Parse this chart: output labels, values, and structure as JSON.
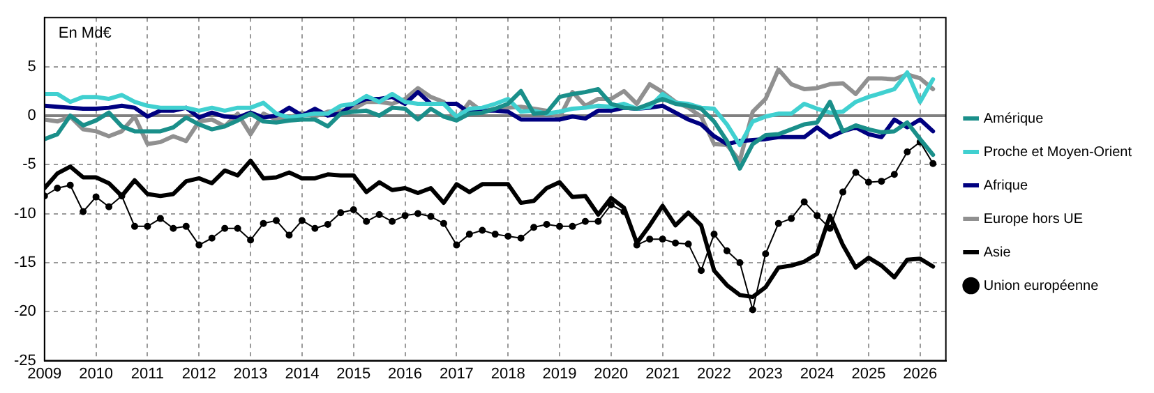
{
  "chart_data": {
    "type": "line",
    "annotations": [
      "En Md€"
    ],
    "x": [
      2009,
      2009.25,
      2009.5,
      2009.75,
      2010,
      2010.25,
      2010.5,
      2010.75,
      2011,
      2011.25,
      2011.5,
      2011.75,
      2012,
      2012.25,
      2012.5,
      2012.75,
      2013,
      2013.25,
      2013.5,
      2013.75,
      2014,
      2014.25,
      2014.5,
      2014.75,
      2015,
      2015.25,
      2015.5,
      2015.75,
      2016,
      2016.25,
      2016.5,
      2016.75,
      2017,
      2017.25,
      2017.5,
      2017.75,
      2018,
      2018.25,
      2018.5,
      2018.75,
      2019,
      2019.25,
      2019.5,
      2019.75,
      2020,
      2020.25,
      2020.5,
      2020.75,
      2021,
      2021.25,
      2021.5,
      2021.75,
      2022,
      2022.25,
      2022.5,
      2022.75,
      2023,
      2023.25,
      2023.5,
      2023.75,
      2024,
      2024.25,
      2024.5,
      2024.75,
      2025,
      2025.25,
      2025.5,
      2025.75,
      2026,
      2026.25
    ],
    "series": [
      {
        "name": "Amérique",
        "color": "#1a8f8a",
        "values": [
          -2.4,
          -1.9,
          0,
          -1,
          -0.5,
          0.3,
          -1.1,
          -1.6,
          -1.6,
          -1.6,
          -1.2,
          -0.2,
          -0.9,
          -1.4,
          -1.1,
          -0.5,
          0.2,
          -0.6,
          -0.7,
          -0.5,
          -0.4,
          -0.4,
          -1.1,
          0.2,
          0.4,
          0.5,
          0,
          0.8,
          0.7,
          -0.4,
          0.7,
          -0.1,
          -0.5,
          0.2,
          0.3,
          0.7,
          1.2,
          2.5,
          0.2,
          0.3,
          1.9,
          2.2,
          2.4,
          2.7,
          1.2,
          0.8,
          0.7,
          1.2,
          1.7,
          1.2,
          1,
          0.7,
          -0.6,
          -2.6,
          -5.4,
          -2.9,
          -2,
          -1.9,
          -1.4,
          -0.9,
          -0.7,
          1.4,
          -1.6,
          -1,
          -1.4,
          -1.7,
          -1.6,
          -0.7,
          -2.4,
          -4
        ]
      },
      {
        "name": "Proche et Moyen-Orient",
        "color": "#40d0d0",
        "values": [
          2.2,
          2.2,
          1.4,
          1.9,
          1.9,
          1.7,
          2.1,
          1.4,
          1,
          0.8,
          0.8,
          0.8,
          0.5,
          0.8,
          0.5,
          0.8,
          0.8,
          1.3,
          0.2,
          -0.2,
          0,
          0.2,
          0.2,
          1,
          1.2,
          2,
          1.4,
          2.2,
          1.4,
          1.2,
          1.2,
          1.2,
          -0.1,
          0.7,
          0.8,
          1.2,
          1.7,
          0.4,
          0.5,
          0.2,
          0.4,
          0.7,
          0.8,
          1,
          0.9,
          1.2,
          0.7,
          0.9,
          2.2,
          1.3,
          1.2,
          0.8,
          0.7,
          -0.9,
          -3,
          -0.6,
          -0.1,
          0.2,
          0.2,
          1.2,
          0.7,
          0.3,
          0.4,
          1.4,
          1.9,
          2.3,
          2.7,
          4.4,
          1.4,
          3.7
        ]
      },
      {
        "name": "Afrique",
        "color": "#000080",
        "values": [
          1,
          0.9,
          0.8,
          0.7,
          0.7,
          0.8,
          1,
          0.8,
          -0.1,
          0.5,
          0.5,
          0.8,
          -0.2,
          0.3,
          -0.1,
          -0.2,
          0.3,
          -0.2,
          0,
          0.8,
          0,
          0.7,
          0,
          0.2,
          1.2,
          1.7,
          1.7,
          1.9,
          1.2,
          2.4,
          1.2,
          1.2,
          1.2,
          0.3,
          0.5,
          0.5,
          0.4,
          -0.4,
          -0.4,
          -0.4,
          -0.4,
          -0.1,
          -0.3,
          0.5,
          0.5,
          0.8,
          0.7,
          0.8,
          1,
          0.3,
          -0.4,
          -0.9,
          -2.1,
          -2.9,
          -2.6,
          -2.5,
          -2.4,
          -2.2,
          -2.2,
          -2.2,
          -1.2,
          -2.2,
          -1.6,
          -1.2,
          -1.9,
          -2.2,
          -0.4,
          -1.2,
          -0.4,
          -1.6
        ]
      },
      {
        "name": "Europe hors UE",
        "color": "#909090",
        "values": [
          -0.4,
          -0.6,
          -0.1,
          -1.4,
          -1.6,
          -2.1,
          -1.6,
          -0.1,
          -2.9,
          -2.7,
          -2.1,
          -2.6,
          -0.6,
          -0.4,
          -1.1,
          0.2,
          -1.9,
          0.2,
          -0.4,
          -0.2,
          0.3,
          -0.1,
          0.4,
          0.5,
          0.7,
          1.4,
          1.4,
          1.2,
          1.7,
          2.8,
          1.9,
          1.4,
          -0.4,
          1.4,
          0.4,
          0.7,
          0.8,
          0.9,
          0.7,
          0.5,
          -0.2,
          2.4,
          1,
          1.7,
          1.7,
          2.5,
          1.2,
          3.2,
          2.4,
          1.4,
          0.8,
          -0.1,
          -2.9,
          -3,
          -4.6,
          0.4,
          1.7,
          4.7,
          3.2,
          2.7,
          2.8,
          3.2,
          3.3,
          2.2,
          3.8,
          3.8,
          3.7,
          4.2,
          3.8,
          2.7
        ]
      },
      {
        "name": "Asie",
        "color": "#000000",
        "values": [
          -7.4,
          -5.9,
          -5.2,
          -6.3,
          -6.3,
          -6.9,
          -8.2,
          -6.6,
          -8,
          -8.2,
          -8,
          -6.7,
          -6.4,
          -6.9,
          -5.6,
          -6.1,
          -4.6,
          -6.4,
          -6.3,
          -5.8,
          -6.4,
          -6.4,
          -6,
          -6.1,
          -6.1,
          -7.8,
          -6.8,
          -7.6,
          -7.4,
          -7.9,
          -7.4,
          -8.9,
          -7,
          -7.8,
          -7,
          -7,
          -7,
          -8.9,
          -8.7,
          -7.4,
          -6.8,
          -8.3,
          -8.2,
          -10.1,
          -8.4,
          -9.4,
          -13,
          -11.2,
          -9.2,
          -11.2,
          -9.9,
          -11.2,
          -15.8,
          -17.3,
          -18.3,
          -18.5,
          -17.5,
          -15.5,
          -15.3,
          -14.9,
          -14.1,
          -10.2,
          -13.2,
          -15.5,
          -14.5,
          -15.3,
          -16.5,
          -14.7,
          -14.6,
          -15.4
        ]
      },
      {
        "name": "Union européenne",
        "color": "#000000",
        "marker": "circle",
        "values": [
          -8.2,
          -7.4,
          -7.1,
          -9.8,
          -8.3,
          -9.3,
          -8.2,
          -11.3,
          -11.3,
          -10.5,
          -11.5,
          -11.3,
          -13.2,
          -12.5,
          -11.5,
          -11.5,
          -12.7,
          -11,
          -10.7,
          -12.2,
          -10.7,
          -11.5,
          -11.1,
          -9.9,
          -9.6,
          -10.8,
          -10.1,
          -10.8,
          -10.2,
          -10,
          -10.3,
          -11,
          -13.2,
          -12.1,
          -11.7,
          -12.1,
          -12.3,
          -12.5,
          -11.4,
          -11.1,
          -11.3,
          -11.3,
          -10.8,
          -10.8,
          -9.1,
          -9.8,
          -13.2,
          -12.6,
          -12.6,
          -13,
          -13.1,
          -15.8,
          -12.1,
          -13.8,
          -15,
          -19.8,
          -14.1,
          -11,
          -10.5,
          -8.8,
          -10.2,
          -11.5,
          -7.8,
          -5.8,
          -6.8,
          -6.7,
          -6,
          -3.7,
          -2.7,
          -4.9
        ]
      }
    ],
    "xlim": [
      2009,
      2026.5
    ],
    "xticks": [
      2009,
      2010,
      2011,
      2012,
      2013,
      2014,
      2015,
      2016,
      2017,
      2018,
      2019,
      2020,
      2021,
      2022,
      2023,
      2024,
      2025,
      2026
    ],
    "ylim": [
      -25,
      10
    ],
    "yticks": [
      -25,
      -20,
      -15,
      -10,
      -5,
      0,
      5
    ],
    "ref_lines": [
      {
        "axis": "y",
        "value": 0,
        "color": "#808080"
      }
    ],
    "grid": true,
    "legend": "right",
    "line_style": "solid"
  }
}
